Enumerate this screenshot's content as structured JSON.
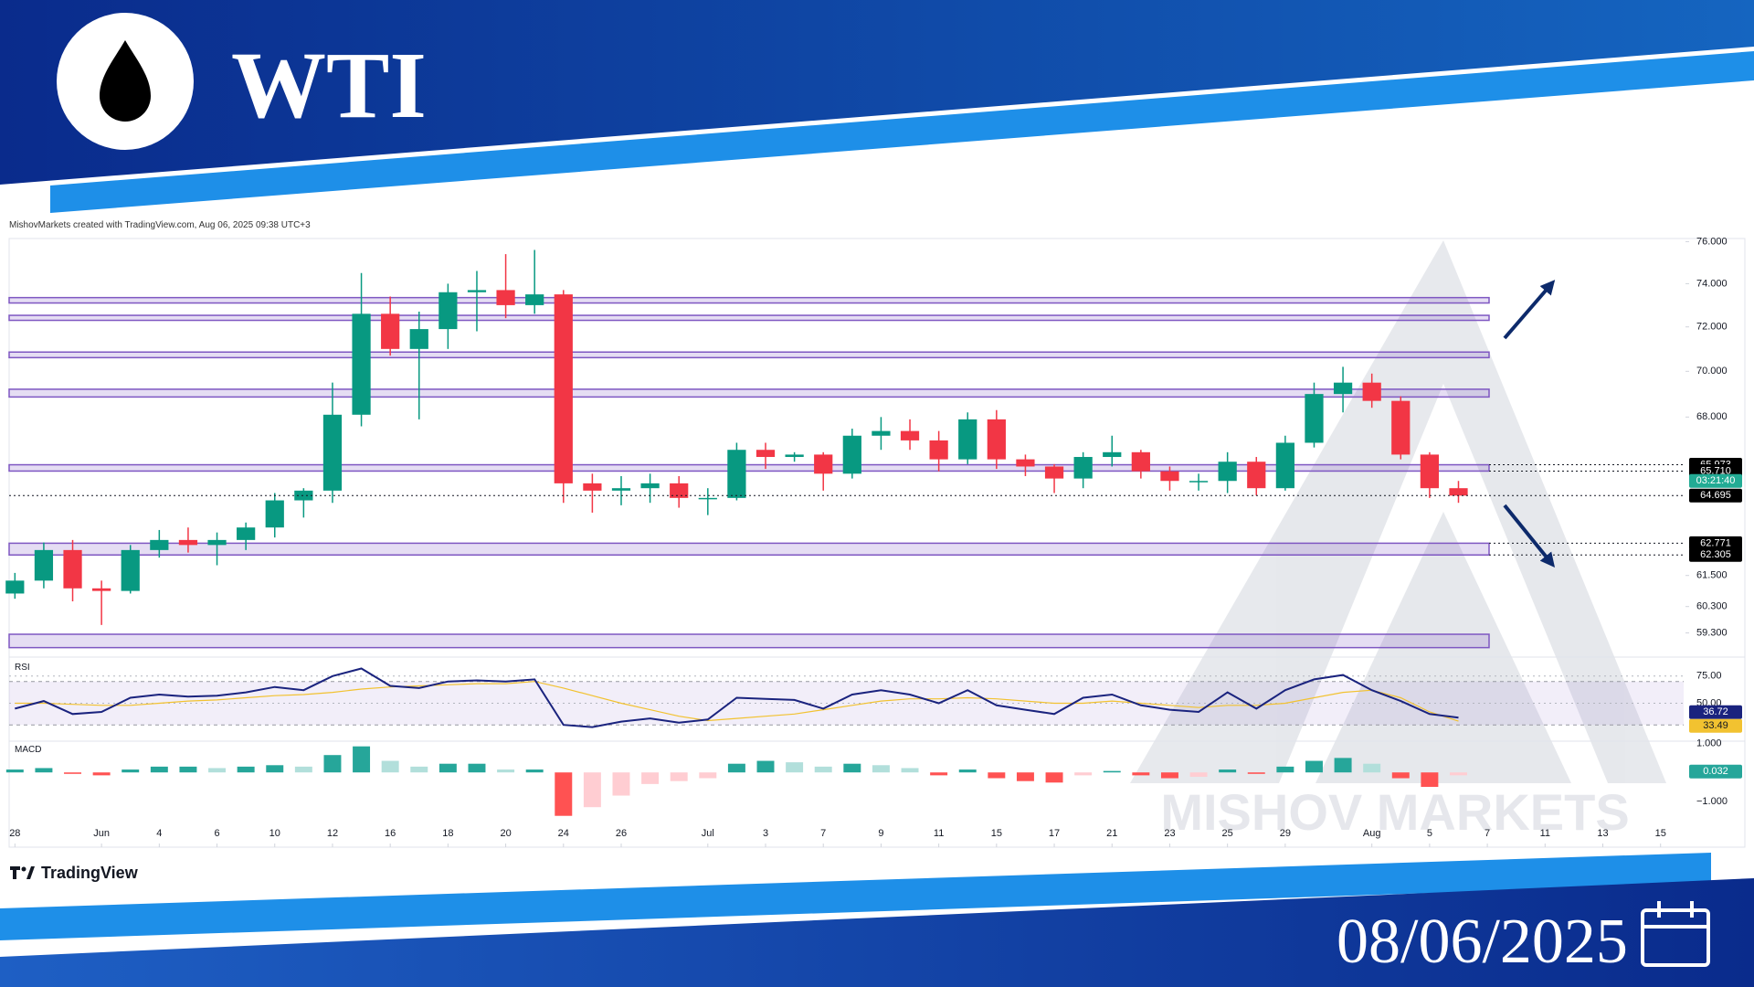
{
  "header": {
    "title": "WTI",
    "date": "08/06/2025"
  },
  "footer": {
    "brand": "TradingView"
  },
  "chart_data": {
    "type": "candlestick",
    "attribution": "MishovMarkets created with TradingView.com, Aug 06, 2025 09:38 UTC+3",
    "watermark": "MISHOV MARKETS",
    "log_scale": true,
    "grid": false,
    "up_color": "#089981",
    "down_color": "#f23645",
    "open": [
      60.8,
      61.3,
      62.5,
      61.0,
      60.9,
      62.5,
      62.9,
      62.7,
      62.9,
      63.4,
      64.5,
      64.9,
      68.1,
      72.6,
      71.0,
      71.9,
      73.6,
      73.7,
      73.0,
      73.5,
      65.2,
      64.9,
      65.0,
      65.2,
      64.6,
      64.6,
      66.6,
      66.3,
      66.4,
      65.6,
      67.2,
      67.4,
      67.0,
      66.2,
      67.9,
      66.2,
      65.9,
      65.4,
      66.3,
      66.5,
      65.7,
      65.3,
      65.3,
      66.1,
      65.0,
      66.9,
      69.0,
      69.5,
      68.7,
      66.4,
      65.0
    ],
    "high": [
      61.6,
      62.8,
      62.9,
      61.3,
      62.7,
      63.3,
      63.4,
      63.2,
      63.6,
      64.8,
      65.0,
      69.5,
      74.5,
      73.4,
      72.7,
      74.0,
      74.6,
      75.4,
      75.6,
      73.7,
      65.6,
      65.5,
      65.6,
      65.5,
      65.0,
      66.9,
      66.9,
      66.5,
      66.5,
      67.5,
      68.0,
      67.9,
      67.4,
      68.2,
      68.3,
      66.4,
      66.0,
      66.5,
      67.2,
      66.6,
      65.9,
      65.6,
      66.5,
      66.3,
      67.2,
      69.5,
      70.2,
      69.9,
      68.9,
      66.5,
      65.3
    ],
    "low": [
      60.6,
      61.0,
      60.5,
      59.6,
      60.8,
      62.2,
      62.4,
      61.9,
      62.5,
      63.0,
      63.8,
      64.4,
      67.6,
      70.7,
      67.9,
      71.0,
      71.8,
      72.4,
      72.6,
      64.4,
      64.0,
      64.3,
      64.4,
      64.2,
      63.9,
      64.5,
      65.8,
      66.1,
      64.9,
      65.4,
      66.6,
      66.6,
      65.7,
      66.0,
      65.8,
      65.5,
      64.8,
      65.0,
      65.9,
      65.4,
      64.9,
      64.9,
      64.8,
      64.7,
      64.9,
      66.7,
      68.2,
      68.4,
      66.2,
      64.6,
      64.4
    ],
    "close": [
      61.3,
      62.5,
      61.0,
      60.9,
      62.5,
      62.9,
      62.7,
      62.9,
      63.4,
      64.5,
      64.9,
      68.1,
      72.6,
      71.0,
      71.9,
      73.6,
      73.7,
      73.0,
      73.5,
      65.2,
      64.9,
      65.0,
      65.2,
      64.6,
      64.6,
      66.6,
      66.3,
      66.4,
      65.6,
      67.2,
      67.4,
      67.0,
      66.2,
      67.9,
      66.2,
      65.9,
      65.4,
      66.3,
      66.5,
      65.7,
      65.3,
      65.3,
      66.1,
      65.0,
      66.9,
      69.0,
      69.5,
      68.7,
      66.4,
      65.0,
      64.695
    ],
    "countdown": "03:21:40",
    "xlim": [
      -0.2,
      57.8
    ],
    "xticks": [
      {
        "value": 0,
        "label": "28"
      },
      {
        "value": 3,
        "label": "Jun"
      },
      {
        "value": 5,
        "label": "4"
      },
      {
        "value": 7,
        "label": "6"
      },
      {
        "value": 9,
        "label": "10"
      },
      {
        "value": 11,
        "label": "12"
      },
      {
        "value": 13,
        "label": "16"
      },
      {
        "value": 15,
        "label": "18"
      },
      {
        "value": 17,
        "label": "20"
      },
      {
        "value": 19,
        "label": "24"
      },
      {
        "value": 21,
        "label": "26"
      },
      {
        "value": 24,
        "label": "Jul"
      },
      {
        "value": 26,
        "label": "3"
      },
      {
        "value": 28,
        "label": "7"
      },
      {
        "value": 30,
        "label": "9"
      },
      {
        "value": 32,
        "label": "11"
      },
      {
        "value": 34,
        "label": "15"
      },
      {
        "value": 36,
        "label": "17"
      },
      {
        "value": 38,
        "label": "21"
      },
      {
        "value": 40,
        "label": "23"
      },
      {
        "value": 42,
        "label": "25"
      },
      {
        "value": 44,
        "label": "29"
      },
      {
        "value": 47,
        "label": "Aug"
      },
      {
        "value": 49,
        "label": "5"
      },
      {
        "value": 51,
        "label": "7"
      },
      {
        "value": 53,
        "label": "11"
      },
      {
        "value": 55,
        "label": "13"
      },
      {
        "value": 57,
        "label": "15"
      }
    ],
    "ylim": [
      58.5,
      76.15
    ],
    "yticks": [
      {
        "value": 76,
        "label": "76.000"
      },
      {
        "value": 74,
        "label": "74.000"
      },
      {
        "value": 72,
        "label": "72.000"
      },
      {
        "value": 70,
        "label": "70.000"
      },
      {
        "value": 68,
        "label": "68.000"
      },
      {
        "value": 61.5,
        "label": "61.500"
      },
      {
        "value": 60.3,
        "label": "60.300"
      },
      {
        "value": 59.3,
        "label": "59.300"
      }
    ],
    "zone_color": "#7e57c2",
    "zones": [
      {
        "low": 73.1,
        "high": 73.35
      },
      {
        "low": 72.3,
        "high": 72.53
      },
      {
        "low": 70.61,
        "high": 70.86
      },
      {
        "low": 68.87,
        "high": 69.21
      },
      {
        "low": {
          "value": 65.71,
          "label": "65.710"
        },
        "high": 65.973,
        "show_labels": true
      },
      {
        "low": 62.305,
        "high": 62.771,
        "show_labels": true
      },
      {
        "low": 58.75,
        "high": 59.25
      }
    ],
    "rsi": {
      "label": "RSI",
      "color": "#1a237e",
      "ma_color": "#f2c230",
      "ylim": [
        15,
        90
      ],
      "yticks": [
        {
          "value": 75,
          "label": "75.00"
        },
        {
          "value": 50,
          "label": "50.00"
        }
      ],
      "band": [
        30,
        70
      ],
      "values": [
        45,
        52,
        40,
        42,
        55,
        58,
        56,
        57,
        60,
        65,
        62,
        75,
        82,
        66,
        64,
        70,
        71,
        70,
        72,
        30,
        28,
        33,
        36,
        32,
        35,
        55,
        54,
        53,
        45,
        58,
        62,
        58,
        50,
        62,
        48,
        44,
        40,
        55,
        58,
        48,
        44,
        42,
        60,
        45,
        62,
        72,
        76,
        62,
        52,
        40,
        36.72
      ],
      "ma_values": [
        50,
        50,
        49,
        48,
        48,
        50,
        52,
        53,
        55,
        57,
        58,
        60,
        63,
        65,
        66,
        67,
        68,
        68,
        70,
        64,
        57,
        50,
        44,
        38,
        34,
        36,
        38,
        40,
        44,
        48,
        52,
        54,
        54,
        55,
        54,
        52,
        50,
        50,
        52,
        50,
        48,
        46,
        48,
        48,
        50,
        55,
        60,
        62,
        55,
        42,
        33.49
      ]
    },
    "macd": {
      "label": "MACD",
      "up_color": "#26a69a",
      "down_color": "#ff5252",
      "ylim": [
        -1.73,
        1.08
      ],
      "yticks": [
        {
          "value": 1,
          "label": "1.000"
        },
        {
          "value": -1,
          "label": "−1.000"
        }
      ],
      "last_value": 0.032,
      "values": [
        0.1,
        0.15,
        -0.05,
        -0.1,
        0.1,
        0.2,
        0.2,
        0.15,
        0.2,
        0.25,
        0.2,
        0.6,
        0.9,
        0.4,
        0.2,
        0.3,
        0.3,
        0.1,
        0.1,
        -1.5,
        -1.2,
        -0.8,
        -0.4,
        -0.3,
        -0.2,
        0.3,
        0.4,
        0.35,
        0.2,
        0.3,
        0.25,
        0.15,
        -0.1,
        0.1,
        -0.2,
        -0.3,
        -0.35,
        -0.1,
        0.05,
        -0.1,
        -0.2,
        -0.15,
        0.1,
        -0.05,
        0.2,
        0.4,
        0.5,
        0.3,
        -0.2,
        -0.5,
        -0.1
      ]
    }
  }
}
